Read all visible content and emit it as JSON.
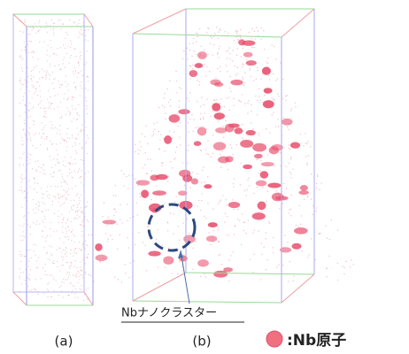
{
  "panels": [
    {
      "label": "(a)"
    },
    {
      "label": "(b)"
    }
  ],
  "annotation": "Nbナノクラスター",
  "legend": ":Nb原子"
}
